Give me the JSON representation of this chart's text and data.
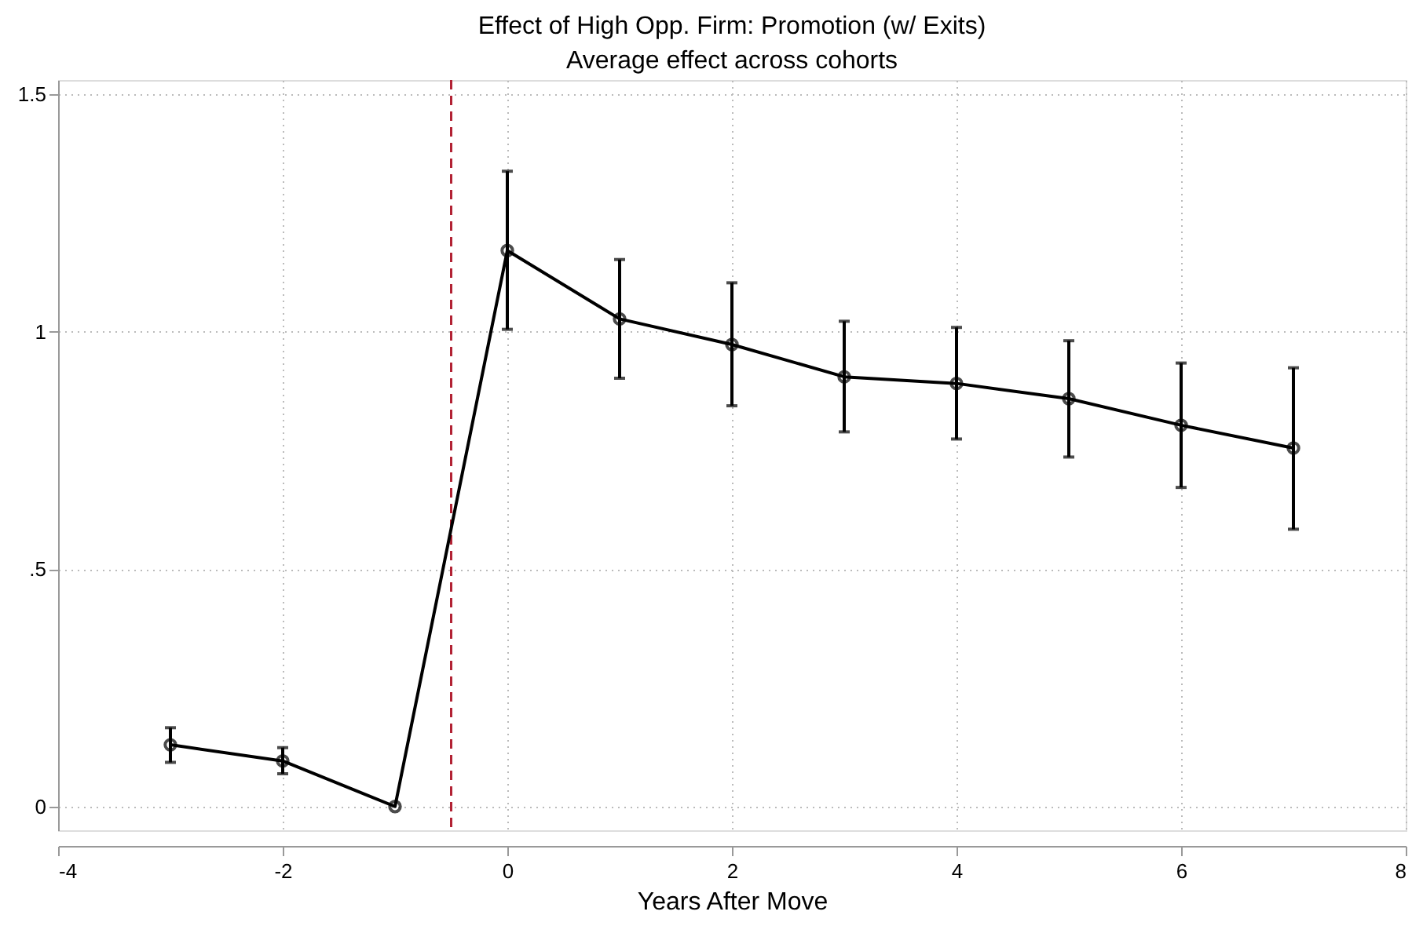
{
  "chart_data": {
    "type": "line",
    "title": "Effect of High Opp. Firm: Promotion (w/ Exits)",
    "subtitle": "Average effect across cohorts",
    "xlabel": "Years After Move",
    "x": [
      -3,
      -2,
      -1,
      0,
      1,
      2,
      3,
      4,
      5,
      6,
      7
    ],
    "series": [
      {
        "color": "#000000",
        "values": [
          0.13,
          0.096,
          0,
          1.171,
          1.027,
          0.973,
          0.905,
          0.891,
          0.859,
          0.803,
          0.755
        ],
        "errors": [
          [
            0.093,
            0.166
          ],
          [
            0.069,
            0.124
          ],
          null,
          [
            1.005,
            1.338
          ],
          [
            0.902,
            1.152
          ],
          [
            0.844,
            1.103
          ],
          [
            0.789,
            1.022
          ],
          [
            0.774,
            1.009
          ],
          [
            0.736,
            0.981
          ],
          [
            0.672,
            0.934
          ],
          [
            0.584,
            0.924
          ]
        ]
      }
    ],
    "xlim": [
      -4,
      8
    ],
    "xticks": [
      -4,
      -2,
      0,
      2,
      4,
      6,
      8
    ],
    "ylim": [
      -0.05,
      1.53
    ],
    "yticks": [
      0,
      {
        "value": 0.5,
        "label": ".5"
      },
      1,
      1.5
    ],
    "ref_lines": [
      {
        "axis": "x",
        "value": -0.5,
        "color": "#b22234",
        "line_style": "dashed"
      }
    ],
    "grid": true,
    "marker": "circle",
    "line_style": "solid"
  }
}
